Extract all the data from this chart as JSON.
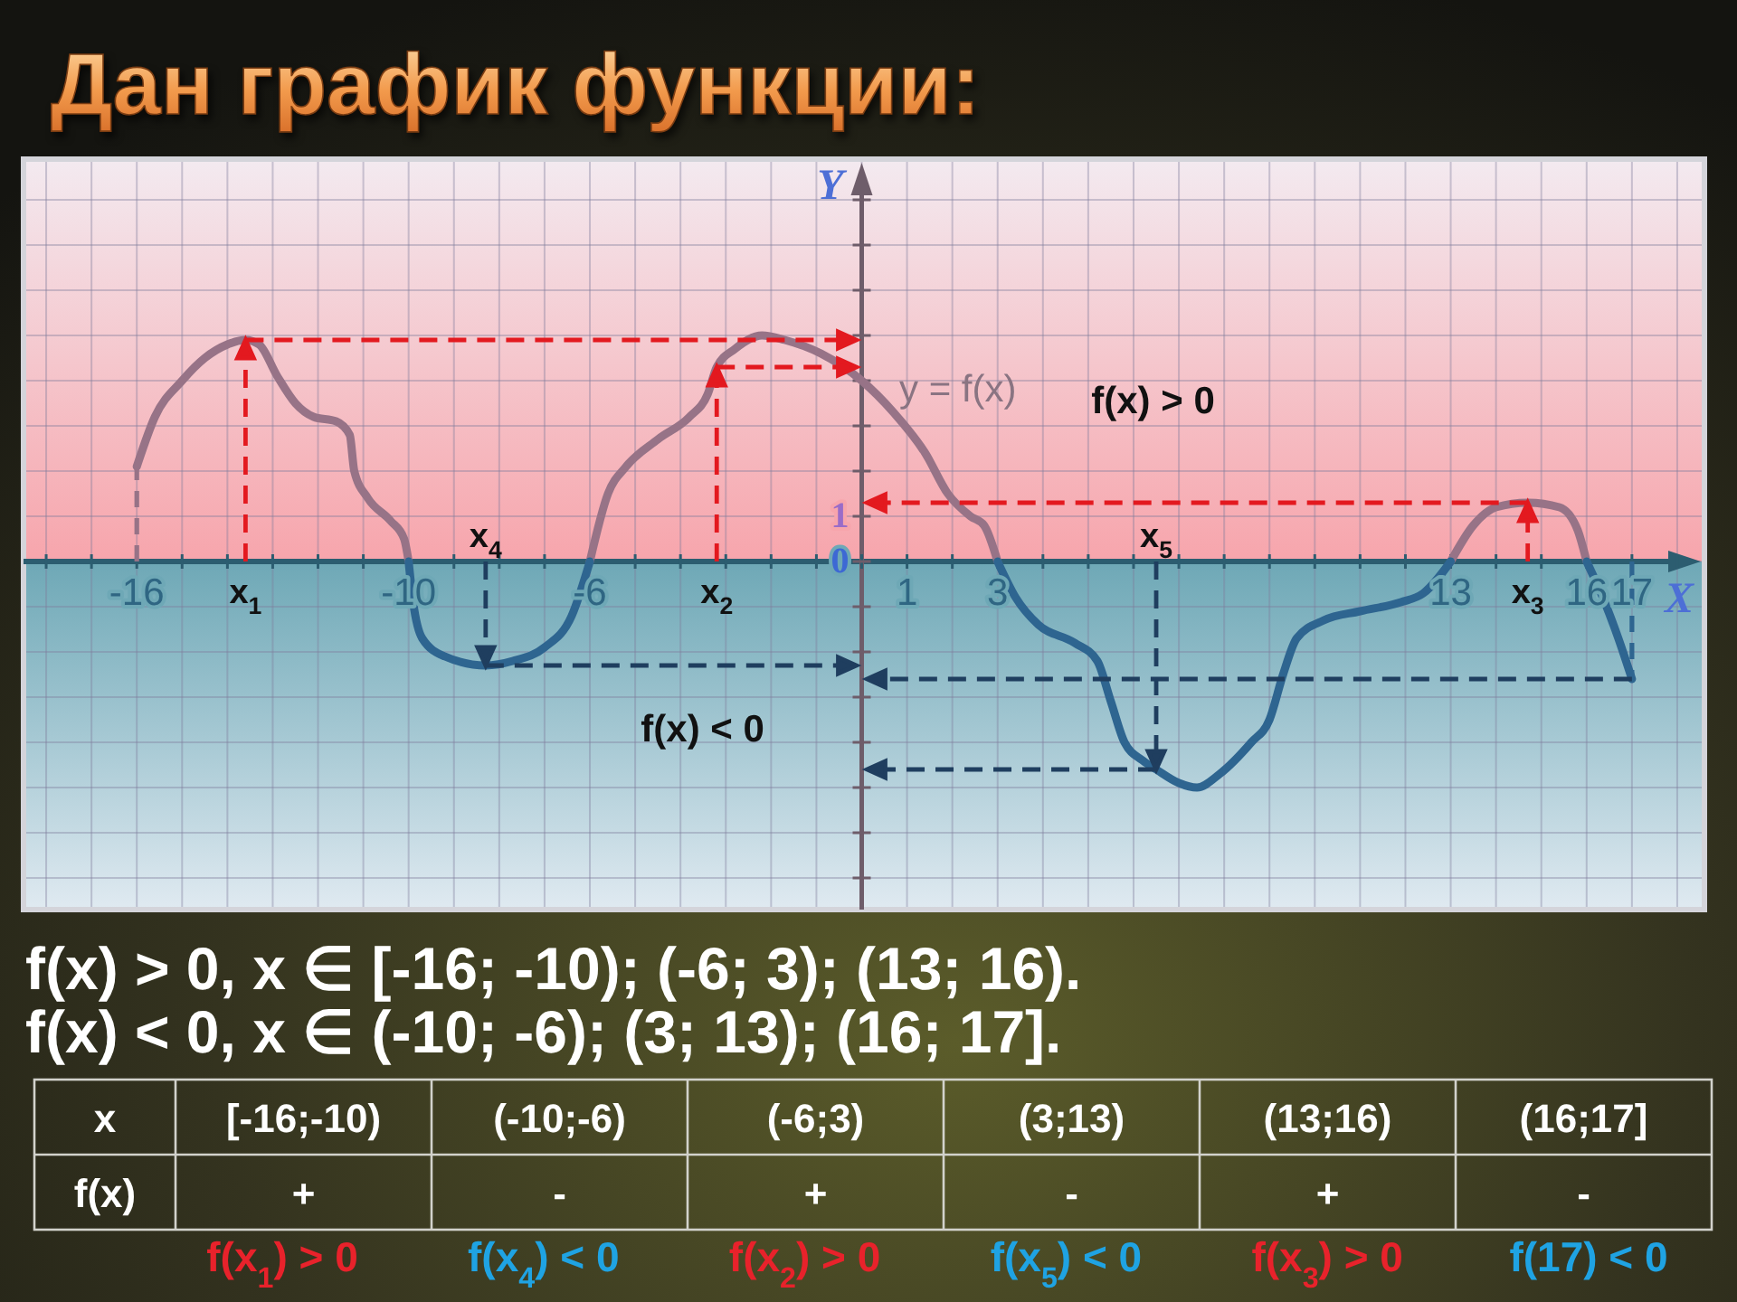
{
  "chart_data": {
    "type": "line",
    "title": "Дан график функции:",
    "xlabel": "X",
    "ylabel": "Y",
    "x": [
      -16,
      -15.6,
      -15,
      -14.5,
      -14,
      -13.6,
      -13.3,
      -12.9,
      -12.5,
      -12.1,
      -11.6,
      -11.3,
      -11.2,
      -10.9,
      -10.4,
      -10.1,
      -10,
      -9.9,
      -9.7,
      -9.2,
      -8.3,
      -7.7,
      -7,
      -6.4,
      -6,
      -5.6,
      -5.2,
      -4.5,
      -3.8,
      -3.4,
      -3.2,
      -2.8,
      -2.2,
      -1.7,
      -0.9,
      0,
      0.7,
      1.4,
      1.9,
      2.4,
      2.7,
      3,
      3.4,
      3.9,
      4.7,
      5.2,
      5.5,
      5.8,
      6.2,
      6.5,
      7,
      7.4,
      7.9,
      8.6,
      9,
      9.3,
      9.6,
      10.2,
      11,
      11.9,
      12.4,
      13,
      13.5,
      14,
      14.7,
      15.4,
      15.8,
      16,
      16.4,
      16.7,
      17
    ],
    "series": [
      {
        "color": "#977387",
        "values": [
          2.1,
          3.2,
          4.0,
          4.5,
          4.8,
          4.9,
          4.8,
          4.1,
          3.5,
          3.2,
          3.1,
          2.8,
          2.0,
          1.4,
          0.9,
          0.5,
          0,
          null,
          null,
          null,
          null,
          null,
          null,
          null,
          0,
          1.5,
          2.1,
          2.7,
          3.2,
          3.7,
          4.3,
          4.7,
          5.0,
          4.9,
          4.6,
          4.0,
          3.3,
          2.4,
          1.5,
          1.0,
          0.8,
          0,
          null,
          null,
          null,
          null,
          null,
          null,
          null,
          null,
          null,
          null,
          null,
          null,
          null,
          null,
          null,
          null,
          null,
          null,
          null,
          0,
          0.8,
          1.2,
          1.3,
          1.2,
          0.7,
          0,
          null,
          null,
          null
        ]
      },
      {
        "color": "#2e6590",
        "values": [
          null,
          null,
          null,
          null,
          null,
          null,
          null,
          null,
          null,
          null,
          null,
          null,
          null,
          null,
          null,
          null,
          0,
          -0.9,
          -1.7,
          -2.1,
          -2.3,
          -2.2,
          -1.9,
          -1.2,
          0,
          null,
          null,
          null,
          null,
          null,
          null,
          null,
          null,
          null,
          null,
          null,
          null,
          null,
          null,
          null,
          null,
          0,
          -0.8,
          -1.4,
          -1.8,
          -2.2,
          -3.1,
          -4.0,
          -4.4,
          -4.6,
          -4.9,
          -5.0,
          -4.7,
          -4.0,
          -3.5,
          -2.5,
          -1.7,
          -1.3,
          -1.1,
          -0.9,
          -0.7,
          0,
          null,
          null,
          null,
          null,
          null,
          0,
          -0.9,
          -1.7,
          -2.6
        ]
      }
    ],
    "xlim": [
      -18.5,
      18.6
    ],
    "ylim": [
      -7.7,
      8.9
    ],
    "xticks": [
      {
        "value": -18,
        "label": null
      },
      {
        "value": -17,
        "label": null
      },
      -16,
      {
        "value": -15,
        "label": null
      },
      {
        "value": -14,
        "label": null
      },
      {
        "value": -13,
        "label": null
      },
      {
        "value": -12,
        "label": null
      },
      {
        "value": -11,
        "label": null
      },
      -10,
      {
        "value": -9,
        "label": null
      },
      {
        "value": -8,
        "label": null
      },
      {
        "value": -7,
        "label": null
      },
      -6,
      {
        "value": -5,
        "label": null
      },
      {
        "value": -4,
        "label": null
      },
      {
        "value": -3,
        "label": null
      },
      {
        "value": -2,
        "label": null
      },
      {
        "value": -1,
        "label": null
      },
      {
        "value": 0,
        "label": null
      },
      1,
      {
        "value": 2,
        "label": null
      },
      3,
      {
        "value": 4,
        "label": null
      },
      {
        "value": 5,
        "label": null
      },
      {
        "value": 6,
        "label": null
      },
      {
        "value": 7,
        "label": null
      },
      {
        "value": 8,
        "label": null
      },
      {
        "value": 9,
        "label": null
      },
      {
        "value": 10,
        "label": null
      },
      {
        "value": 11,
        "label": null
      },
      {
        "value": 12,
        "label": null
      },
      13,
      {
        "value": 14,
        "label": null
      },
      {
        "value": 15,
        "label": null
      },
      16,
      17,
      {
        "value": 18,
        "label": null
      }
    ],
    "yticks": [
      {
        "value": -7,
        "label": null
      },
      {
        "value": -6,
        "label": null
      },
      {
        "value": -5,
        "label": null
      },
      {
        "value": -4,
        "label": null
      },
      {
        "value": -3,
        "label": null
      },
      {
        "value": -2,
        "label": null
      },
      {
        "value": -1,
        "label": null
      },
      0,
      1,
      {
        "value": 2,
        "label": null
      },
      {
        "value": 3,
        "label": null
      },
      {
        "value": 4,
        "label": null
      },
      {
        "value": 5,
        "label": null
      },
      {
        "value": 6,
        "label": null
      },
      {
        "value": 7,
        "label": null
      },
      {
        "value": 8,
        "label": null
      }
    ],
    "grid": true,
    "bands": [
      {
        "axis": "y",
        "from": 0,
        "to": 8.9,
        "color": "#f7a5ac",
        "label": "f(x) > 0"
      },
      {
        "axis": "y",
        "from": -7.7,
        "to": 0,
        "color": "#6ea8b6",
        "label": "f(x) < 0"
      }
    ],
    "annotations": [
      "y = f(x)",
      {
        "text": "x$_{1}$",
        "x": -13.6,
        "y": 0
      },
      {
        "text": "x$_{2}$",
        "x": -3.2,
        "y": 0
      },
      {
        "text": "x$_{3}$",
        "x": 14.7,
        "y": 0
      },
      {
        "text": "x$_{4}$",
        "x": -8.3,
        "y": 0
      },
      {
        "text": "x$_{5}$",
        "x": 6.5,
        "y": 0
      },
      "f(x) > 0, x ∈ [-16; -10); (-6; 3); (13; 16).",
      "f(x) < 0, x ∈ (-10; -6); (3; 13); (16; 17].",
      "x",
      "[-16;-10)",
      "(-10;-6)",
      "(-6;3)",
      "(3;13)",
      "(13;16)",
      "(16;17]",
      "f(x)",
      "+",
      "-",
      "+",
      "-",
      "+",
      "-",
      "f(x$_{1}$) > 0",
      "f(x$_{4}$) < 0",
      "f(x$_{2}$) > 0",
      "f(x$_{5}$) < 0",
      "f(x$_{3}$) > 0",
      "f(17) < 0"
    ]
  }
}
